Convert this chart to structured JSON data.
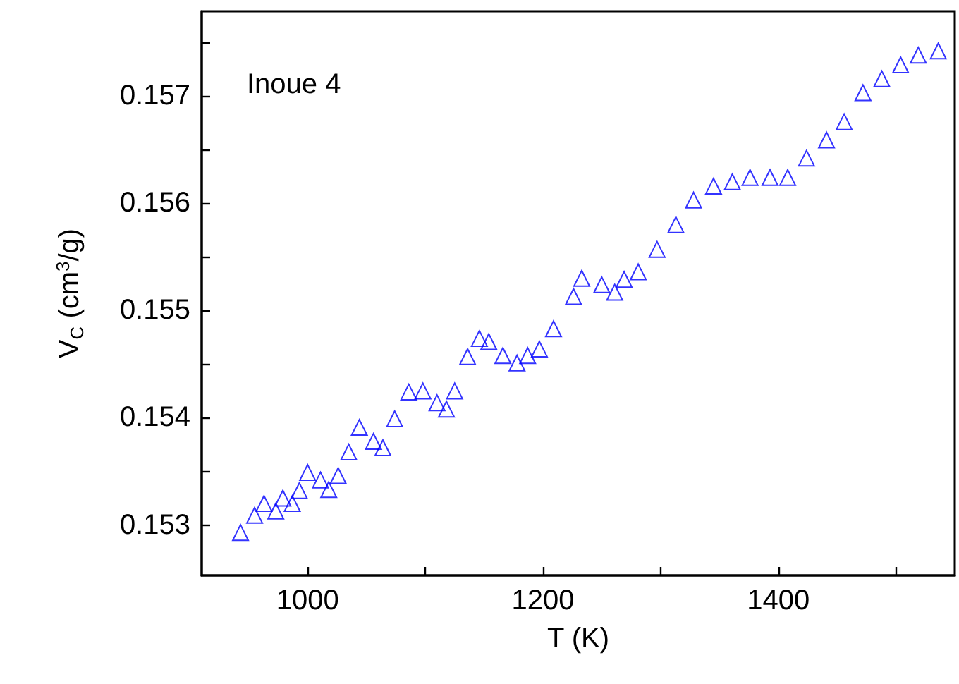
{
  "chart_data": {
    "type": "scatter",
    "xlabel": "T (K)",
    "ylabel": "V$_{C}$ (cm$^{3}$/g)",
    "annotations": [
      "Inoue 4"
    ],
    "marker": "triangle",
    "grid": false,
    "xlim": [
      910,
      1550
    ],
    "xticks": [
      1000,
      {
        "value": 1100,
        "label": null
      },
      1200,
      {
        "value": 1300,
        "label": null
      },
      1400,
      {
        "value": 1500,
        "label": null
      }
    ],
    "ylim": [
      0.15253,
      0.15779
    ],
    "yticks": [
      0.153,
      {
        "value": 0.1535,
        "label": null
      },
      0.154,
      {
        "value": 0.1545,
        "label": null
      },
      0.155,
      {
        "value": 0.1555,
        "label": null
      },
      0.156,
      {
        "value": 0.1565,
        "label": null
      },
      0.157,
      {
        "value": 0.1575,
        "label": null
      }
    ],
    "series": [
      {
        "color": "#0000ff",
        "x": [
          943,
          955,
          963,
          973,
          979,
          987,
          993,
          1000,
          1011,
          1018,
          1026,
          1035,
          1044,
          1056,
          1064,
          1074,
          1086,
          1098,
          1110,
          1118,
          1125,
          1136,
          1146,
          1154,
          1166,
          1178,
          1187,
          1197,
          1209,
          1226,
          1233,
          1250,
          1261,
          1269,
          1281,
          1297,
          1313,
          1328,
          1345,
          1361,
          1376,
          1393,
          1408,
          1424,
          1441,
          1456,
          1472,
          1488,
          1504,
          1519,
          1536
        ],
        "values": [
          0.15293,
          0.15309,
          0.1532,
          0.15313,
          0.15325,
          0.1532,
          0.15332,
          0.15349,
          0.15342,
          0.15333,
          0.15346,
          0.15368,
          0.15391,
          0.15378,
          0.15372,
          0.15399,
          0.15424,
          0.15425,
          0.15414,
          0.15408,
          0.15425,
          0.15457,
          0.15474,
          0.15471,
          0.15458,
          0.15451,
          0.15458,
          0.15464,
          0.15483,
          0.15513,
          0.1553,
          0.15524,
          0.15517,
          0.15529,
          0.15536,
          0.15557,
          0.1558,
          0.15603,
          0.15616,
          0.1562,
          0.15624,
          0.15624,
          0.15624,
          0.15642,
          0.15659,
          0.15676,
          0.15703,
          0.15716,
          0.15729,
          0.15738,
          0.15742
        ]
      }
    ]
  }
}
